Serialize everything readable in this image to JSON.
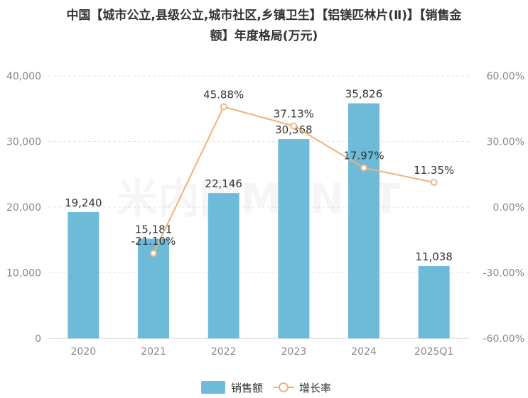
{
  "title_line1": "中国【城市公立,县级公立,城市社区,乡镇卫生】【铝镁匹林片(Ⅱ)】【销售金",
  "title_line2": "额】年度格局(万元)",
  "watermark": "米内网MENET",
  "colors": {
    "bar": "#6dbbd9",
    "line": "#f0b27a",
    "text": "#333333",
    "axis": "#888888",
    "grid": "#e6e6e6"
  },
  "chart_data": {
    "type": "bar+line",
    "categories": [
      "2020",
      "2021",
      "2022",
      "2023",
      "2024",
      "2025Q1"
    ],
    "series": [
      {
        "name": "销售额",
        "type": "bar",
        "axis": "left",
        "values": [
          19240,
          15181,
          22146,
          30368,
          35826,
          11038
        ],
        "labels": [
          "19,240",
          "15,181",
          "22,146",
          "30,368",
          "35,826",
          "11,038"
        ]
      },
      {
        "name": "增长率",
        "type": "line",
        "axis": "right",
        "values": [
          null,
          -21.1,
          45.88,
          37.13,
          17.97,
          11.35
        ],
        "labels": [
          "",
          "-21.10%",
          "45.88%",
          "37.13%",
          "17.97%",
          "11.35%"
        ]
      }
    ],
    "y_left": {
      "min": 0,
      "max": 40000,
      "ticks": [
        0,
        10000,
        20000,
        30000,
        40000
      ],
      "tick_labels": [
        "0",
        "10,000",
        "20,000",
        "30,000",
        "40,000"
      ]
    },
    "y_right": {
      "min": -60,
      "max": 60,
      "ticks": [
        -60,
        -30,
        0,
        30,
        60
      ],
      "tick_labels": [
        "-60.00%",
        "-30.00%",
        "0.00%",
        "30.00%",
        "60.00%"
      ]
    },
    "legend": {
      "position": "bottom-center",
      "items": [
        "销售额",
        "增长率"
      ]
    },
    "grid": true
  }
}
